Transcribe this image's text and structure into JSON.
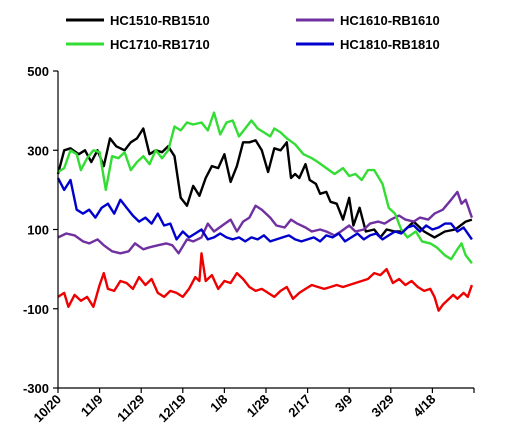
{
  "chart_data": {
    "type": "line",
    "title": "",
    "xlabel": "",
    "ylabel": "",
    "ylim": [
      -300,
      500
    ],
    "y_ticks": [
      -300,
      -100,
      100,
      300,
      500
    ],
    "y_tick_labels": [
      "-300",
      "-100",
      "100",
      "300",
      "500"
    ],
    "x_tick_labels": [
      "10/20",
      "11/9",
      "11/29",
      "12/19",
      "1/8",
      "1/28",
      "2/17",
      "3/9",
      "3/29",
      "4/18"
    ],
    "x_index_range": [
      0,
      200
    ],
    "grid": false,
    "legend": "top",
    "series": [
      {
        "name": "HC1510-RB1510",
        "color": "#000000",
        "points": [
          [
            0,
            240
          ],
          [
            3,
            300
          ],
          [
            6,
            305
          ],
          [
            10,
            290
          ],
          [
            13,
            300
          ],
          [
            16,
            270
          ],
          [
            19,
            300
          ],
          [
            22,
            260
          ],
          [
            25,
            330
          ],
          [
            28,
            310
          ],
          [
            32,
            300
          ],
          [
            35,
            320
          ],
          [
            38,
            330
          ],
          [
            41,
            355
          ],
          [
            44,
            290
          ],
          [
            47,
            300
          ],
          [
            50,
            295
          ],
          [
            53,
            310
          ],
          [
            56,
            285
          ],
          [
            59,
            180
          ],
          [
            62,
            160
          ],
          [
            65,
            210
          ],
          [
            68,
            185
          ],
          [
            71,
            230
          ],
          [
            74,
            260
          ],
          [
            77,
            255
          ],
          [
            80,
            290
          ],
          [
            83,
            220
          ],
          [
            86,
            260
          ],
          [
            89,
            320
          ],
          [
            92,
            320
          ],
          [
            95,
            325
          ],
          [
            98,
            300
          ],
          [
            101,
            245
          ],
          [
            104,
            305
          ],
          [
            107,
            300
          ],
          [
            110,
            320
          ],
          [
            112,
            230
          ],
          [
            114,
            240
          ],
          [
            116,
            230
          ],
          [
            119,
            265
          ],
          [
            121,
            225
          ],
          [
            124,
            215
          ],
          [
            126,
            190
          ],
          [
            129,
            195
          ],
          [
            131,
            170
          ],
          [
            134,
            165
          ],
          [
            137,
            125
          ],
          [
            140,
            180
          ],
          [
            142,
            110
          ],
          [
            145,
            155
          ],
          [
            148,
            95
          ],
          [
            152,
            100
          ],
          [
            155,
            80
          ],
          [
            158,
            100
          ],
          [
            162,
            95
          ],
          [
            166,
            95
          ],
          [
            171,
            120
          ],
          [
            176,
            95
          ],
          [
            181,
            80
          ],
          [
            186,
            95
          ],
          [
            191,
            100
          ],
          [
            196,
            120
          ],
          [
            199,
            125
          ]
        ]
      },
      {
        "name": "HC1610-RB1610",
        "color": "#7030A0",
        "points": [
          [
            0,
            80
          ],
          [
            4,
            90
          ],
          [
            8,
            85
          ],
          [
            12,
            70
          ],
          [
            15,
            65
          ],
          [
            19,
            75
          ],
          [
            22,
            60
          ],
          [
            26,
            45
          ],
          [
            30,
            40
          ],
          [
            34,
            45
          ],
          [
            37,
            65
          ],
          [
            41,
            50
          ],
          [
            44,
            55
          ],
          [
            48,
            60
          ],
          [
            52,
            65
          ],
          [
            55,
            60
          ],
          [
            58,
            40
          ],
          [
            62,
            75
          ],
          [
            65,
            70
          ],
          [
            69,
            80
          ],
          [
            72,
            115
          ],
          [
            75,
            95
          ],
          [
            79,
            110
          ],
          [
            83,
            125
          ],
          [
            86,
            95
          ],
          [
            89,
            120
          ],
          [
            92,
            130
          ],
          [
            95,
            160
          ],
          [
            98,
            150
          ],
          [
            102,
            130
          ],
          [
            105,
            110
          ],
          [
            109,
            105
          ],
          [
            112,
            125
          ],
          [
            115,
            115
          ],
          [
            119,
            105
          ],
          [
            122,
            95
          ],
          [
            126,
            100
          ],
          [
            129,
            95
          ],
          [
            133,
            85
          ],
          [
            136,
            95
          ],
          [
            140,
            110
          ],
          [
            143,
            95
          ],
          [
            147,
            100
          ],
          [
            150,
            115
          ],
          [
            154,
            120
          ],
          [
            157,
            115
          ],
          [
            160,
            125
          ],
          [
            164,
            135
          ],
          [
            167,
            125
          ],
          [
            171,
            120
          ],
          [
            174,
            130
          ],
          [
            178,
            125
          ],
          [
            181,
            140
          ],
          [
            185,
            150
          ],
          [
            189,
            175
          ],
          [
            192,
            195
          ],
          [
            194,
            165
          ],
          [
            196,
            175
          ],
          [
            199,
            130
          ]
        ]
      },
      {
        "name": "HC1710-RB1710",
        "color": "#33DD33",
        "points": [
          [
            0,
            245
          ],
          [
            3,
            255
          ],
          [
            6,
            300
          ],
          [
            9,
            290
          ],
          [
            11,
            250
          ],
          [
            14,
            280
          ],
          [
            17,
            300
          ],
          [
            20,
            295
          ],
          [
            23,
            200
          ],
          [
            26,
            285
          ],
          [
            29,
            280
          ],
          [
            32,
            295
          ],
          [
            35,
            250
          ],
          [
            38,
            270
          ],
          [
            41,
            285
          ],
          [
            44,
            265
          ],
          [
            47,
            300
          ],
          [
            50,
            280
          ],
          [
            53,
            300
          ],
          [
            56,
            360
          ],
          [
            59,
            350
          ],
          [
            62,
            370
          ],
          [
            65,
            365
          ],
          [
            69,
            370
          ],
          [
            72,
            350
          ],
          [
            75,
            395
          ],
          [
            78,
            340
          ],
          [
            81,
            370
          ],
          [
            84,
            375
          ],
          [
            87,
            335
          ],
          [
            90,
            355
          ],
          [
            93,
            375
          ],
          [
            96,
            355
          ],
          [
            99,
            345
          ],
          [
            102,
            335
          ],
          [
            104,
            355
          ],
          [
            107,
            345
          ],
          [
            110,
            330
          ],
          [
            114,
            315
          ],
          [
            118,
            290
          ],
          [
            122,
            280
          ],
          [
            125,
            270
          ],
          [
            129,
            255
          ],
          [
            133,
            240
          ],
          [
            137,
            255
          ],
          [
            140,
            235
          ],
          [
            143,
            240
          ],
          [
            146,
            225
          ],
          [
            149,
            250
          ],
          [
            152,
            250
          ],
          [
            156,
            215
          ],
          [
            159,
            155
          ],
          [
            162,
            140
          ],
          [
            165,
            100
          ],
          [
            168,
            80
          ],
          [
            172,
            95
          ],
          [
            175,
            70
          ],
          [
            179,
            65
          ],
          [
            182,
            55
          ],
          [
            186,
            35
          ],
          [
            189,
            25
          ],
          [
            192,
            50
          ],
          [
            194,
            65
          ],
          [
            196,
            35
          ],
          [
            199,
            15
          ]
        ]
      },
      {
        "name": "HC1810-RB1810",
        "color": "#0000CC",
        "points": [
          [
            0,
            230
          ],
          [
            3,
            200
          ],
          [
            6,
            225
          ],
          [
            9,
            150
          ],
          [
            12,
            140
          ],
          [
            15,
            150
          ],
          [
            18,
            130
          ],
          [
            21,
            155
          ],
          [
            24,
            165
          ],
          [
            27,
            140
          ],
          [
            30,
            175
          ],
          [
            33,
            155
          ],
          [
            36,
            135
          ],
          [
            39,
            120
          ],
          [
            42,
            130
          ],
          [
            45,
            115
          ],
          [
            48,
            140
          ],
          [
            51,
            110
          ],
          [
            54,
            115
          ],
          [
            57,
            75
          ],
          [
            60,
            95
          ],
          [
            63,
            80
          ],
          [
            66,
            90
          ],
          [
            69,
            100
          ],
          [
            72,
            75
          ],
          [
            75,
            80
          ],
          [
            78,
            90
          ],
          [
            81,
            80
          ],
          [
            84,
            75
          ],
          [
            87,
            80
          ],
          [
            90,
            70
          ],
          [
            93,
            80
          ],
          [
            96,
            75
          ],
          [
            99,
            85
          ],
          [
            102,
            70
          ],
          [
            105,
            75
          ],
          [
            108,
            80
          ],
          [
            111,
            85
          ],
          [
            114,
            75
          ],
          [
            117,
            70
          ],
          [
            120,
            75
          ],
          [
            123,
            80
          ],
          [
            126,
            70
          ],
          [
            129,
            85
          ],
          [
            132,
            80
          ],
          [
            135,
            90
          ],
          [
            138,
            70
          ],
          [
            141,
            80
          ],
          [
            144,
            90
          ],
          [
            147,
            75
          ],
          [
            150,
            85
          ],
          [
            153,
            90
          ],
          [
            156,
            75
          ],
          [
            159,
            85
          ],
          [
            162,
            95
          ],
          [
            165,
            90
          ],
          [
            168,
            105
          ],
          [
            171,
            110
          ],
          [
            174,
            95
          ],
          [
            177,
            110
          ],
          [
            180,
            100
          ],
          [
            183,
            105
          ],
          [
            186,
            115
          ],
          [
            189,
            115
          ],
          [
            192,
            95
          ],
          [
            195,
            105
          ],
          [
            199,
            75
          ]
        ]
      },
      {
        "name": "",
        "color": "#EE0000",
        "points": [
          [
            0,
            -70
          ],
          [
            3,
            -60
          ],
          [
            5,
            -95
          ],
          [
            8,
            -65
          ],
          [
            11,
            -80
          ],
          [
            14,
            -70
          ],
          [
            17,
            -95
          ],
          [
            20,
            -40
          ],
          [
            22,
            -10
          ],
          [
            24,
            -50
          ],
          [
            27,
            -55
          ],
          [
            30,
            -30
          ],
          [
            33,
            -35
          ],
          [
            36,
            -50
          ],
          [
            39,
            -20
          ],
          [
            42,
            -40
          ],
          [
            45,
            -25
          ],
          [
            48,
            -60
          ],
          [
            51,
            -70
          ],
          [
            54,
            -55
          ],
          [
            57,
            -60
          ],
          [
            60,
            -70
          ],
          [
            63,
            -50
          ],
          [
            66,
            -20
          ],
          [
            68,
            -30
          ],
          [
            69,
            40
          ],
          [
            71,
            -30
          ],
          [
            74,
            -15
          ],
          [
            77,
            -50
          ],
          [
            80,
            -30
          ],
          [
            83,
            -35
          ],
          [
            86,
            -10
          ],
          [
            89,
            -25
          ],
          [
            92,
            -45
          ],
          [
            95,
            -55
          ],
          [
            98,
            -50
          ],
          [
            101,
            -60
          ],
          [
            104,
            -70
          ],
          [
            107,
            -55
          ],
          [
            110,
            -45
          ],
          [
            113,
            -75
          ],
          [
            116,
            -60
          ],
          [
            119,
            -50
          ],
          [
            122,
            -40
          ],
          [
            125,
            -45
          ],
          [
            128,
            -50
          ],
          [
            131,
            -45
          ],
          [
            134,
            -40
          ],
          [
            137,
            -45
          ],
          [
            140,
            -40
          ],
          [
            143,
            -35
          ],
          [
            146,
            -30
          ],
          [
            149,
            -25
          ],
          [
            152,
            -10
          ],
          [
            155,
            -15
          ],
          [
            158,
            0
          ],
          [
            161,
            -35
          ],
          [
            164,
            -25
          ],
          [
            167,
            -40
          ],
          [
            170,
            -30
          ],
          [
            173,
            -45
          ],
          [
            176,
            -55
          ],
          [
            179,
            -50
          ],
          [
            181,
            -70
          ],
          [
            183,
            -105
          ],
          [
            185,
            -90
          ],
          [
            187,
            -80
          ],
          [
            190,
            -65
          ],
          [
            192,
            -75
          ],
          [
            195,
            -60
          ],
          [
            197,
            -70
          ],
          [
            199,
            -40
          ]
        ]
      }
    ]
  }
}
